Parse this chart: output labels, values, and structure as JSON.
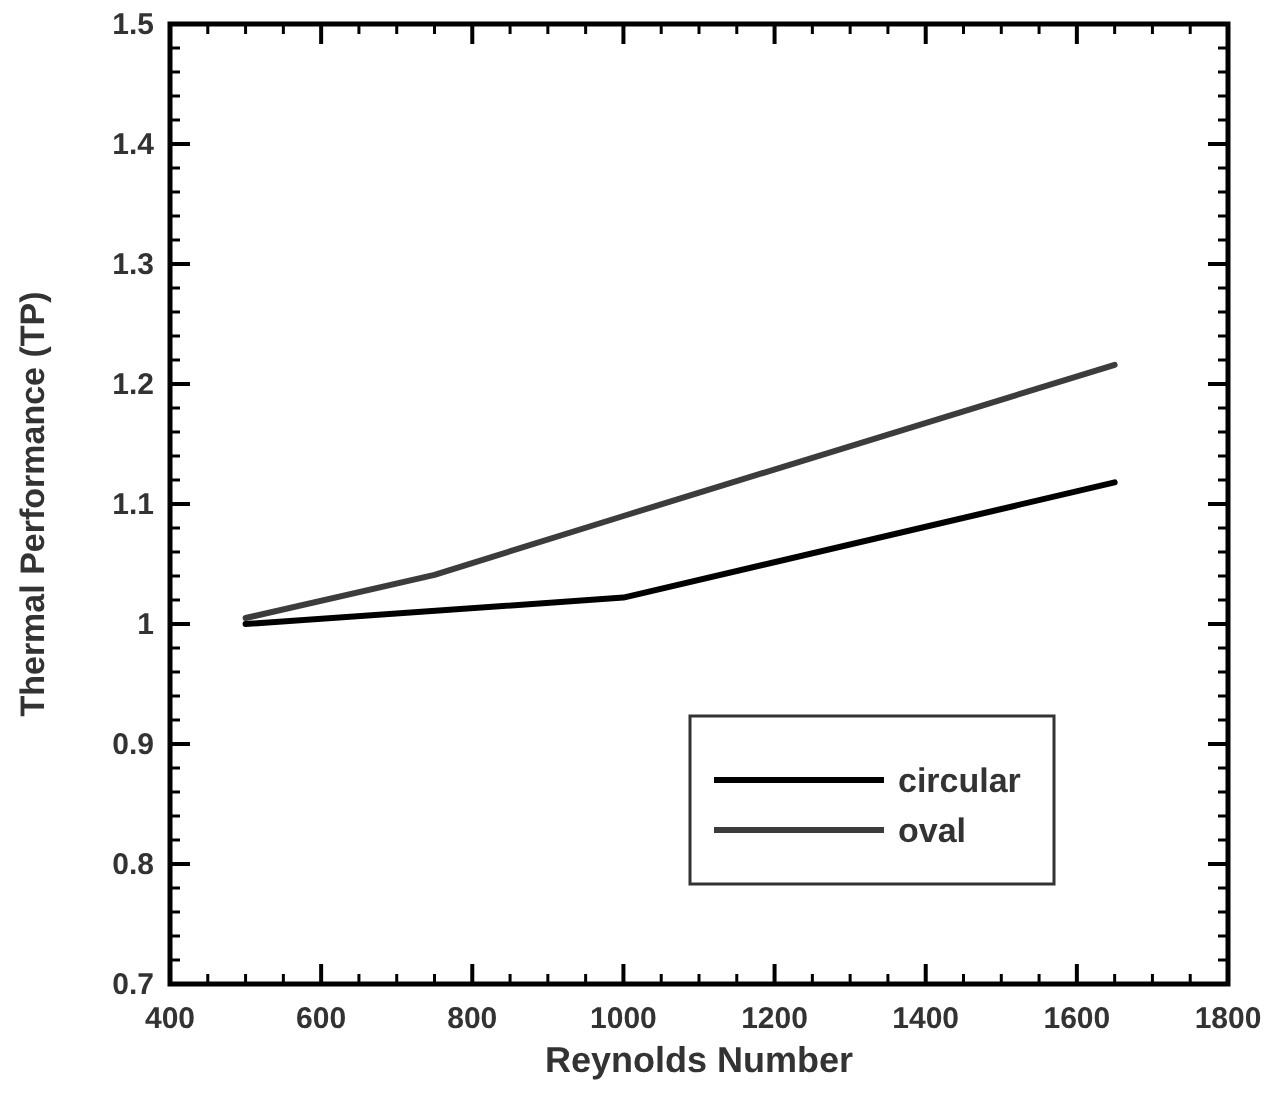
{
  "chart_data": {
    "type": "line",
    "xlabel": "Reynolds Number",
    "ylabel": "Thermal Performance (TP)",
    "xlim": [
      400,
      1800
    ],
    "xticks": [
      400,
      600,
      800,
      1000,
      1200,
      1400,
      1600,
      1800
    ],
    "ylim": [
      0.7,
      1.5
    ],
    "yticks": [
      {
        "value": 0.7,
        "label": "0.7"
      },
      {
        "value": 0.8,
        "label": "0.8"
      },
      {
        "value": 0.9,
        "label": "0.9"
      },
      {
        "value": 1,
        "label": "1"
      },
      {
        "value": 1.1,
        "label": "1.1"
      },
      {
        "value": 1.2,
        "label": "1.2"
      },
      {
        "value": 1.3,
        "label": "1.3"
      },
      {
        "value": 1.4,
        "label": "1.4"
      },
      {
        "value": 1.5,
        "label": "1.5"
      }
    ],
    "series": [
      {
        "name": "circular",
        "color": "#000000",
        "x": [
          500,
          1000,
          1650
        ],
        "values": [
          1.0,
          1.022,
          1.118
        ]
      },
      {
        "name": "oval",
        "color": "#3c3c3c",
        "x": [
          500,
          750,
          1000,
          1650
        ],
        "values": [
          1.005,
          1.041,
          1.09,
          1.216
        ]
      }
    ],
    "legend": "bottom right",
    "grid": false,
    "marker": "none",
    "line_style": "solid"
  }
}
